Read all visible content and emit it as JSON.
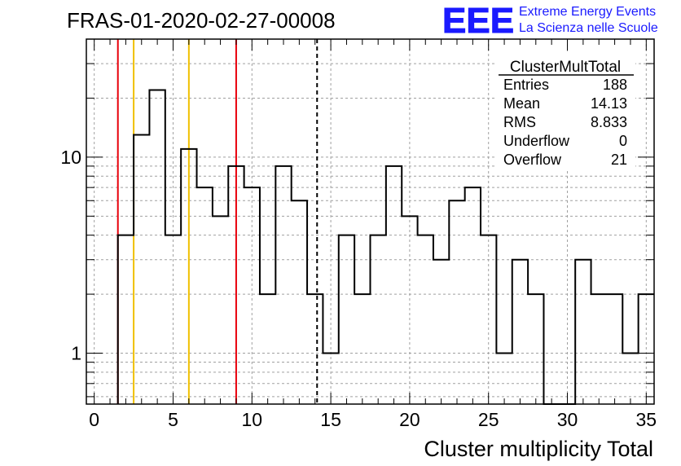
{
  "header": {
    "run_title": "FRAS-01-2020-02-27-00008",
    "logo_text": "EEE",
    "project_line1": "Extreme Energy Events",
    "project_line2": "La Scienza nelle Scuole"
  },
  "stats_box": {
    "name": "ClusterMultTotal",
    "rows": [
      {
        "label": "Entries",
        "value": "188"
      },
      {
        "label": "Mean",
        "value": "14.13"
      },
      {
        "label": "RMS",
        "value": "8.833"
      },
      {
        "label": "Underflow",
        "value": "0"
      },
      {
        "label": "Overflow",
        "value": "21"
      }
    ]
  },
  "colors": {
    "histogram": "#000000",
    "red_lines": "#e8000b",
    "yellow_lines": "#f0c000",
    "mean_line": "#000000",
    "logo": "#1a1aff",
    "grid": "#a0a0a0"
  },
  "chart_data": {
    "type": "histogram",
    "xlabel": "Cluster multiplicity Total",
    "ylabel": "",
    "xlim": [
      -0.5,
      35.5
    ],
    "ylim": [
      0.55,
      40
    ],
    "yscale": "log",
    "grid": true,
    "x_ticks": [
      0,
      5,
      10,
      15,
      20,
      25,
      30,
      35
    ],
    "y_ticks": [
      1,
      10
    ],
    "bin_width": 1,
    "bins_start": 2,
    "counts": [
      4,
      13,
      22,
      4,
      11,
      7,
      5,
      9,
      7,
      2,
      9,
      6,
      2,
      1,
      4,
      2,
      4,
      9,
      5,
      4,
      3,
      6,
      7,
      4,
      1,
      3,
      2,
      0,
      0,
      3,
      2,
      2,
      1,
      2
    ],
    "vertical_lines": [
      {
        "x": 1.5,
        "color": "red"
      },
      {
        "x": 2.5,
        "color": "yellow"
      },
      {
        "x": 6,
        "color": "yellow"
      },
      {
        "x": 9,
        "color": "red"
      },
      {
        "x": 14.13,
        "color": "black",
        "style": "dashed"
      }
    ]
  }
}
